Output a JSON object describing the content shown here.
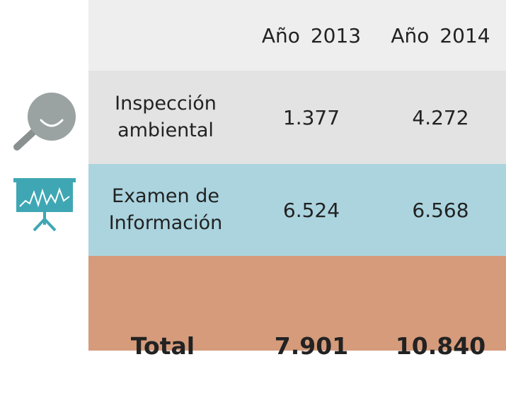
{
  "table": {
    "columns": [
      "Año 2013",
      "Año 2014"
    ],
    "rows": [
      {
        "label": "Inspección ambiental",
        "values": [
          "1.377",
          "4.272"
        ]
      },
      {
        "label": "Examen de Información",
        "values": [
          "6.524",
          "6.568"
        ]
      },
      {
        "label": "Total",
        "values": [
          "7.901",
          "10.840"
        ]
      }
    ]
  }
}
